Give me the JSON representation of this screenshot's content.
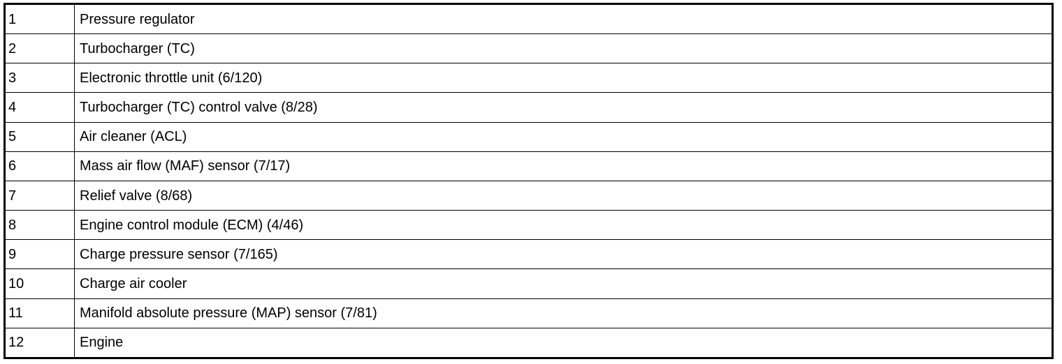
{
  "legend_table": {
    "rows": [
      {
        "number": "1",
        "label": "Pressure regulator"
      },
      {
        "number": "2",
        "label": "Turbocharger (TC)"
      },
      {
        "number": "3",
        "label": "Electronic throttle unit (6/120)"
      },
      {
        "number": "4",
        "label": "Turbocharger (TC) control valve (8/28)"
      },
      {
        "number": "5",
        "label": "Air cleaner (ACL)"
      },
      {
        "number": "6",
        "label": "Mass air flow (MAF) sensor (7/17)"
      },
      {
        "number": "7",
        "label": "Relief valve (8/68)"
      },
      {
        "number": "8",
        "label": "Engine control module (ECM) (4/46)"
      },
      {
        "number": "9",
        "label": "Charge pressure sensor (7/165)"
      },
      {
        "number": "10",
        "label": "Charge air cooler"
      },
      {
        "number": "11",
        "label": "Manifold absolute pressure (MAP) sensor (7/81)"
      },
      {
        "number": "12",
        "label": "Engine"
      }
    ]
  }
}
